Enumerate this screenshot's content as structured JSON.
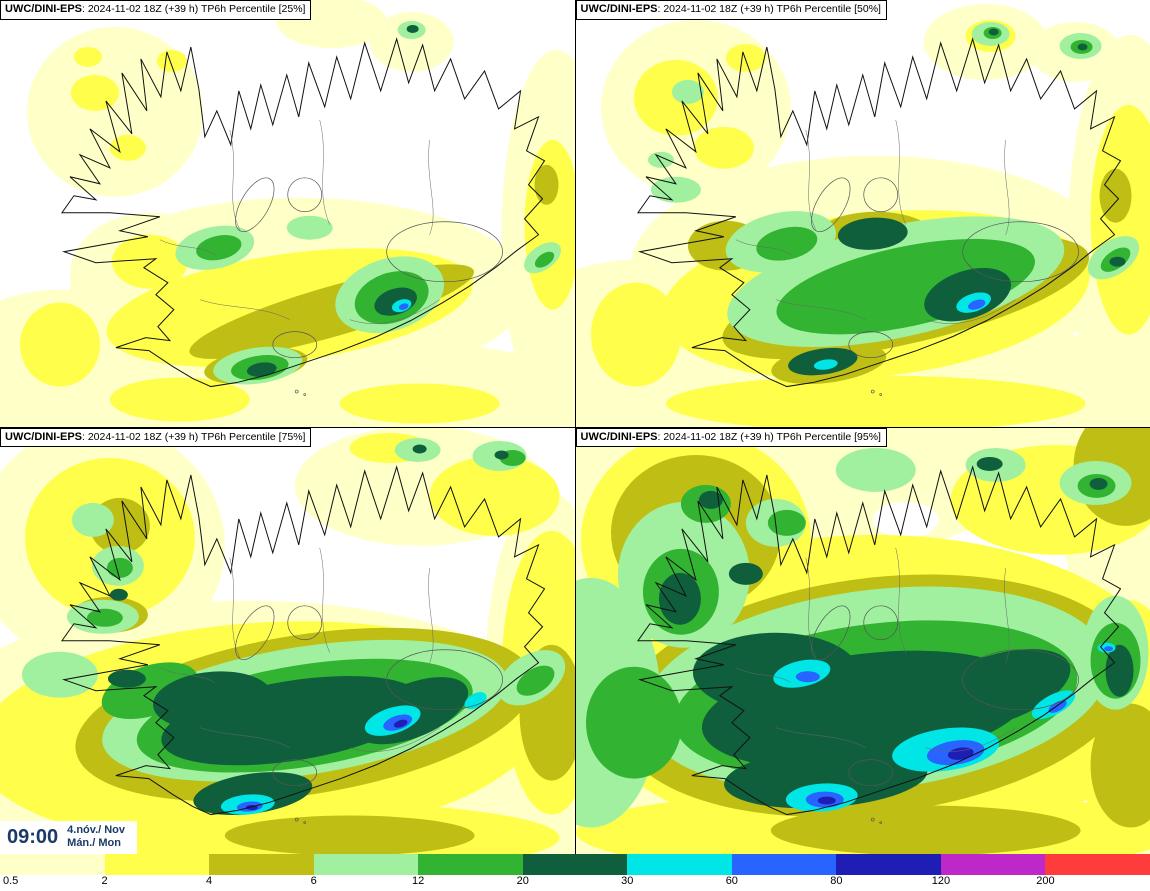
{
  "panels": [
    {
      "model": "UWC/DINI-EPS",
      "runinfo": ": 2024-11-02 18Z (+39 h) ",
      "param": "TP6h Percentile ",
      "percentile": "[25%]"
    },
    {
      "model": "UWC/DINI-EPS",
      "runinfo": ": 2024-11-02 18Z (+39 h) ",
      "param": "TP6h Percentile ",
      "percentile": "[50%]"
    },
    {
      "model": "UWC/DINI-EPS",
      "runinfo": ": 2024-11-02 18Z (+39 h) ",
      "param": "TP6h Percentile ",
      "percentile": "[75%]"
    },
    {
      "model": "UWC/DINI-EPS",
      "runinfo": ": 2024-11-02 18Z (+39 h) ",
      "param": "TP6h Percentile ",
      "percentile": "[95%]"
    }
  ],
  "time_box": {
    "time": "09:00",
    "date": "4.nóv./ Nov",
    "day": "Mán./ Mon"
  },
  "colorbar": {
    "ticks": [
      "0.5",
      "2",
      "4",
      "6",
      "12",
      "20",
      "30",
      "60",
      "80",
      "120",
      "200"
    ],
    "colors": [
      "#ffffc8",
      "#ffff4b",
      "#bebe14",
      "#a0f0a0",
      "#32b432",
      "#0f5f3c",
      "#00e6e6",
      "#2864ff",
      "#1e1eb4",
      "#be28c8",
      "#ff3c3c"
    ]
  },
  "ui_colors": {
    "time_text": "#1b3a66",
    "title_text": "#000000"
  }
}
